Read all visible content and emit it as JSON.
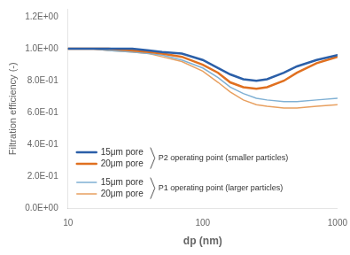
{
  "chart_data": {
    "type": "line",
    "xlabel": "dp (nm)",
    "ylabel": "Filtration efficiency (-)",
    "log": "x",
    "xlim": [
      10,
      1000
    ],
    "ylim": [
      0.0,
      1.25
    ],
    "xticks": [
      10,
      100,
      1000
    ],
    "yticks": [
      {
        "value": 0.0,
        "label": "0.0E+00"
      },
      {
        "value": 0.2,
        "label": "2.0E-01"
      },
      {
        "value": 0.4,
        "label": "4.0E-01"
      },
      {
        "value": 0.6,
        "label": "6.0E-01"
      },
      {
        "value": 0.8,
        "label": "8.0E-01"
      },
      {
        "value": 1.0,
        "label": "1.0E+00"
      },
      {
        "value": 1.2,
        "label": "1.2E+00"
      }
    ],
    "grid": false,
    "legend": "lower left",
    "x": [
      10,
      15,
      20,
      30,
      40,
      50,
      70,
      100,
      130,
      160,
      200,
      250,
      300,
      400,
      500,
      700,
      1000
    ],
    "series": [
      {
        "name": "15μm pore",
        "color": "#2b5fa8",
        "values": [
          1.0,
          1.0,
          1.0,
          1.0,
          0.99,
          0.98,
          0.97,
          0.93,
          0.88,
          0.84,
          0.81,
          0.8,
          0.81,
          0.85,
          0.89,
          0.93,
          0.96
        ]
      },
      {
        "name": "20μm pore",
        "color": "#e07020",
        "values": [
          1.0,
          1.0,
          1.0,
          0.99,
          0.98,
          0.97,
          0.95,
          0.9,
          0.85,
          0.79,
          0.76,
          0.75,
          0.76,
          0.8,
          0.85,
          0.91,
          0.95
        ]
      },
      {
        "name": "15μm pore",
        "color": "#7fb0d4",
        "values": [
          1.0,
          1.0,
          0.99,
          0.98,
          0.97,
          0.96,
          0.93,
          0.88,
          0.82,
          0.76,
          0.72,
          0.69,
          0.68,
          0.67,
          0.67,
          0.68,
          0.69
        ]
      },
      {
        "name": "20μm pore",
        "color": "#e8a060",
        "values": [
          1.0,
          1.0,
          0.99,
          0.98,
          0.97,
          0.95,
          0.92,
          0.86,
          0.79,
          0.73,
          0.68,
          0.65,
          0.64,
          0.63,
          0.63,
          0.64,
          0.65
        ]
      }
    ],
    "annotations": [
      "P2 operating point (smaller particles)",
      "P1 operating point (larger particles)"
    ]
  }
}
